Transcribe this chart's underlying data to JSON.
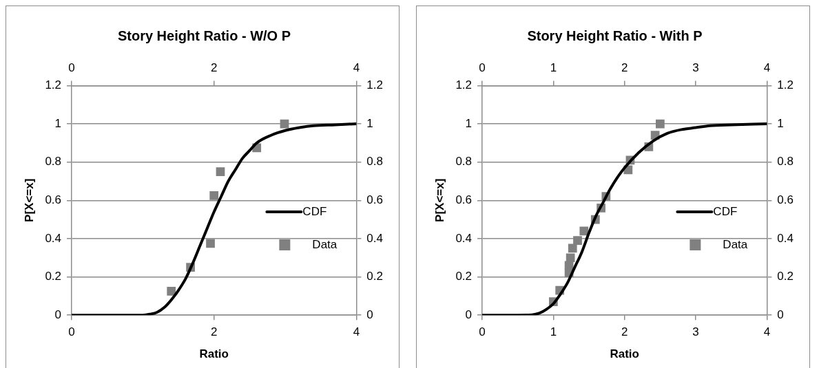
{
  "chart_data": [
    {
      "type": "scatter",
      "title": "Story Height Ratio - W/O P",
      "xlabel": "Ratio",
      "ylabel": "P[X<=x]",
      "xlim": [
        0,
        4
      ],
      "xticks": [
        0,
        2,
        4
      ],
      "x2lim": [
        0,
        4
      ],
      "x2ticks": [
        0,
        2,
        4
      ],
      "ylim": [
        0,
        1.2
      ],
      "yticks": [
        0,
        0.2,
        0.4,
        0.6,
        0.8,
        1,
        1.2
      ],
      "y2lim": [
        0,
        1.2
      ],
      "y2ticks": [
        0,
        0.2,
        0.4,
        0.6,
        0.8,
        1,
        1.2
      ],
      "grid": "y",
      "legend": "right",
      "series": [
        {
          "name": "CDF",
          "type": "line",
          "color": "#000000",
          "marker": "none",
          "x": [
            0,
            0.5,
            1,
            1.1,
            1.2,
            1.3,
            1.4,
            1.5,
            1.6,
            1.7,
            1.8,
            1.9,
            2,
            2.1,
            2.2,
            2.3,
            2.4,
            2.5,
            2.6,
            2.8,
            3,
            3.2,
            3.4,
            3.7,
            4
          ],
          "values": [
            0,
            0,
            0,
            0.005,
            0.015,
            0.04,
            0.08,
            0.13,
            0.19,
            0.27,
            0.36,
            0.45,
            0.54,
            0.62,
            0.7,
            0.76,
            0.82,
            0.86,
            0.9,
            0.94,
            0.965,
            0.98,
            0.99,
            0.995,
            1
          ]
        },
        {
          "name": "Data",
          "type": "scatter",
          "color": "#808080",
          "marker": "square",
          "x": [
            1.4,
            1.67,
            1.95,
            2,
            2.09,
            2.6,
            2.99
          ],
          "values": [
            0.125,
            0.25,
            0.375,
            0.625,
            0.75,
            0.875,
            1
          ]
        }
      ]
    },
    {
      "type": "scatter",
      "title": "Story Height Ratio - With P",
      "xlabel": "Ratio",
      "ylabel": "P[X<=x]",
      "xlim": [
        0,
        4
      ],
      "xticks": [
        0,
        1,
        2,
        3,
        4
      ],
      "x2lim": [
        0,
        4
      ],
      "x2ticks": [
        0,
        1,
        2,
        3,
        4
      ],
      "ylim": [
        0,
        1.2
      ],
      "yticks": [
        0,
        0.2,
        0.4,
        0.6,
        0.8,
        1,
        1.2
      ],
      "y2lim": [
        0,
        1.2
      ],
      "y2ticks": [
        0,
        0.2,
        0.4,
        0.6,
        0.8,
        1,
        1.2
      ],
      "grid": "y",
      "legend": "right",
      "series": [
        {
          "name": "CDF",
          "type": "line",
          "color": "#000000",
          "marker": "none",
          "x": [
            0,
            0.5,
            0.7,
            0.8,
            0.9,
            1,
            1.1,
            1.2,
            1.3,
            1.4,
            1.5,
            1.6,
            1.7,
            1.8,
            1.9,
            2,
            2.2,
            2.4,
            2.6,
            2.8,
            3,
            3.2,
            3.5,
            4
          ],
          "values": [
            0,
            0,
            0.002,
            0.01,
            0.03,
            0.06,
            0.11,
            0.17,
            0.25,
            0.33,
            0.43,
            0.52,
            0.59,
            0.66,
            0.72,
            0.77,
            0.85,
            0.91,
            0.95,
            0.97,
            0.98,
            0.99,
            0.995,
            1
          ]
        },
        {
          "name": "Data",
          "type": "scatter",
          "color": "#808080",
          "marker": "square",
          "x": [
            1,
            1.09,
            1.22,
            1.22,
            1.24,
            1.27,
            1.34,
            1.43,
            1.59,
            1.67,
            1.74,
            2.05,
            2.08,
            2.34,
            2.43,
            2.5
          ],
          "values": [
            0.07,
            0.13,
            0.22,
            0.26,
            0.3,
            0.35,
            0.39,
            0.44,
            0.5,
            0.56,
            0.62,
            0.76,
            0.81,
            0.88,
            0.94,
            1
          ]
        }
      ]
    }
  ]
}
